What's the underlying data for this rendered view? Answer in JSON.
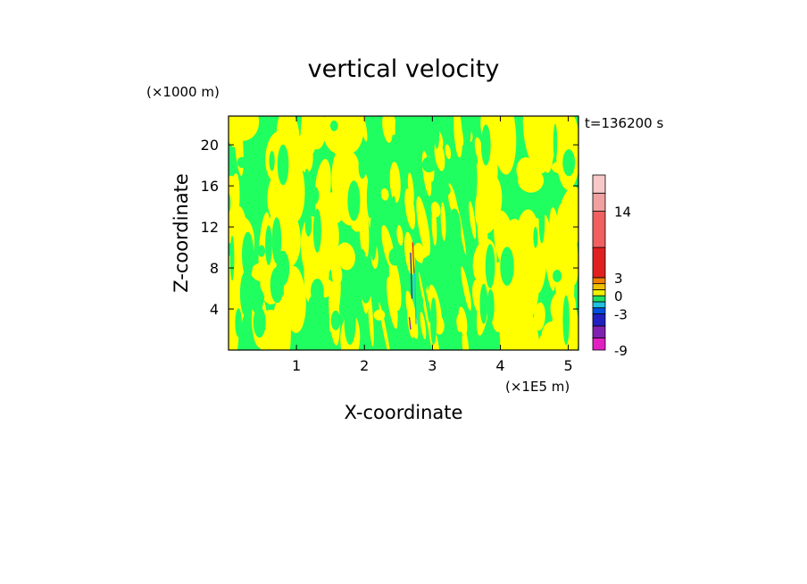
{
  "chart_data": {
    "type": "heatmap",
    "title": "vertical velocity",
    "xlabel": "X-coordinate",
    "ylabel": "Z-coordinate",
    "x_unit": "(×1E5 m)",
    "y_unit": "(×1000 m)",
    "time_label": "t=136200 s",
    "xlim": [
      0,
      5.15
    ],
    "ylim": [
      0,
      22.8
    ],
    "x_ticks": [
      "1",
      "2",
      "3",
      "4",
      "5"
    ],
    "x_tick_values": [
      1,
      2,
      3,
      4,
      5
    ],
    "y_ticks": [
      "4",
      "8",
      "12",
      "16",
      "20"
    ],
    "y_tick_values": [
      4,
      8,
      12,
      16,
      20
    ],
    "colorbar": {
      "labels": [
        "14",
        "3",
        "0",
        "-3",
        "-9"
      ],
      "label_values": [
        14,
        3,
        0,
        -3,
        -9
      ],
      "levels": [
        -9,
        -7,
        -5,
        -3,
        -2,
        -1,
        0,
        1,
        2,
        3,
        8,
        14,
        17,
        20
      ],
      "colors": [
        "#e020c0",
        "#8020b0",
        "#2020c0",
        "#0050e0",
        "#20c0e0",
        "#20e060",
        "#f0f000",
        "#f0c000",
        "#f08000",
        "#e02020",
        "#f06060",
        "#f0a0a0",
        "#f8c8c8"
      ]
    },
    "dominant_field": {
      "description_values": "field dominated by weak motions",
      "ranges": [
        [
          -1,
          0
        ],
        [
          0,
          1
        ]
      ],
      "colors": [
        "#20ff60",
        "#ffff00"
      ]
    }
  }
}
